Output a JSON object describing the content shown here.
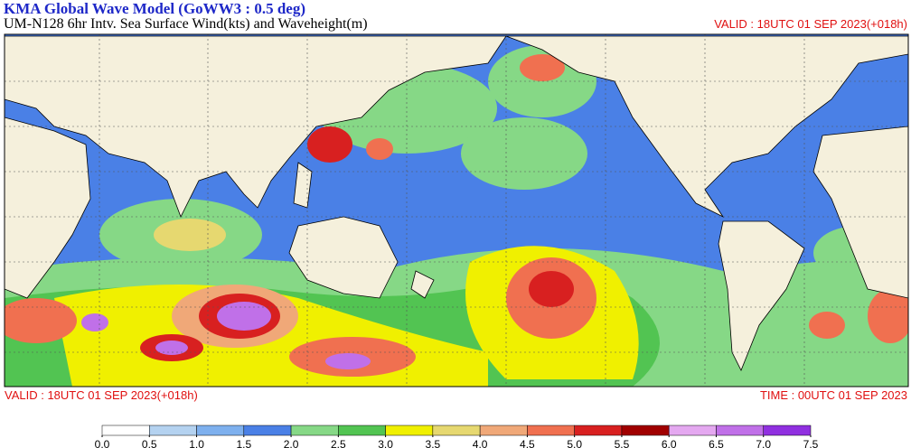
{
  "header": {
    "title": "KMA  Global Wave Model (GoWW3 : 0.5 deg)",
    "subtitle": "UM-N128  6hr Intv. Sea Surface Wind(kts) and Waveheight(m)",
    "valid_top": "VALID : 18UTC 01 SEP 2023(+018h)"
  },
  "footer": {
    "valid": "VALID : 18UTC 01 SEP 2023(+018h)",
    "time": "TIME : 00UTC 01 SEP 2023"
  },
  "colorbar": {
    "colors": [
      "#ffffff",
      "#b4d2f0",
      "#7eb0ee",
      "#4a80e6",
      "#86d886",
      "#52c452",
      "#f0f000",
      "#e6d870",
      "#f0a878",
      "#f07050",
      "#d82020",
      "#a00000",
      "#e4a8f0",
      "#c070e8",
      "#9030e0"
    ],
    "ticks": [
      {
        "value": 0,
        "label": "0.0"
      },
      {
        "value": 0.5,
        "label": "0.5"
      },
      {
        "value": 1,
        "label": "1.0"
      },
      {
        "value": 1.5,
        "label": "1.5"
      },
      {
        "value": 2,
        "label": "2.0"
      },
      {
        "value": 2.5,
        "label": "2.5"
      },
      {
        "value": 3,
        "label": "3.0"
      },
      {
        "value": 3.5,
        "label": "3.5"
      },
      {
        "value": 4,
        "label": "4.0"
      },
      {
        "value": 4.5,
        "label": "4.5"
      },
      {
        "value": 5,
        "label": "5.0"
      },
      {
        "value": 5.5,
        "label": "5.5"
      },
      {
        "value": 6,
        "label": "6.0"
      },
      {
        "value": 6.5,
        "label": "6.5"
      },
      {
        "value": 7,
        "label": "7.0"
      },
      {
        "value": 7.5,
        "label": "7.5"
      }
    ]
  }
}
